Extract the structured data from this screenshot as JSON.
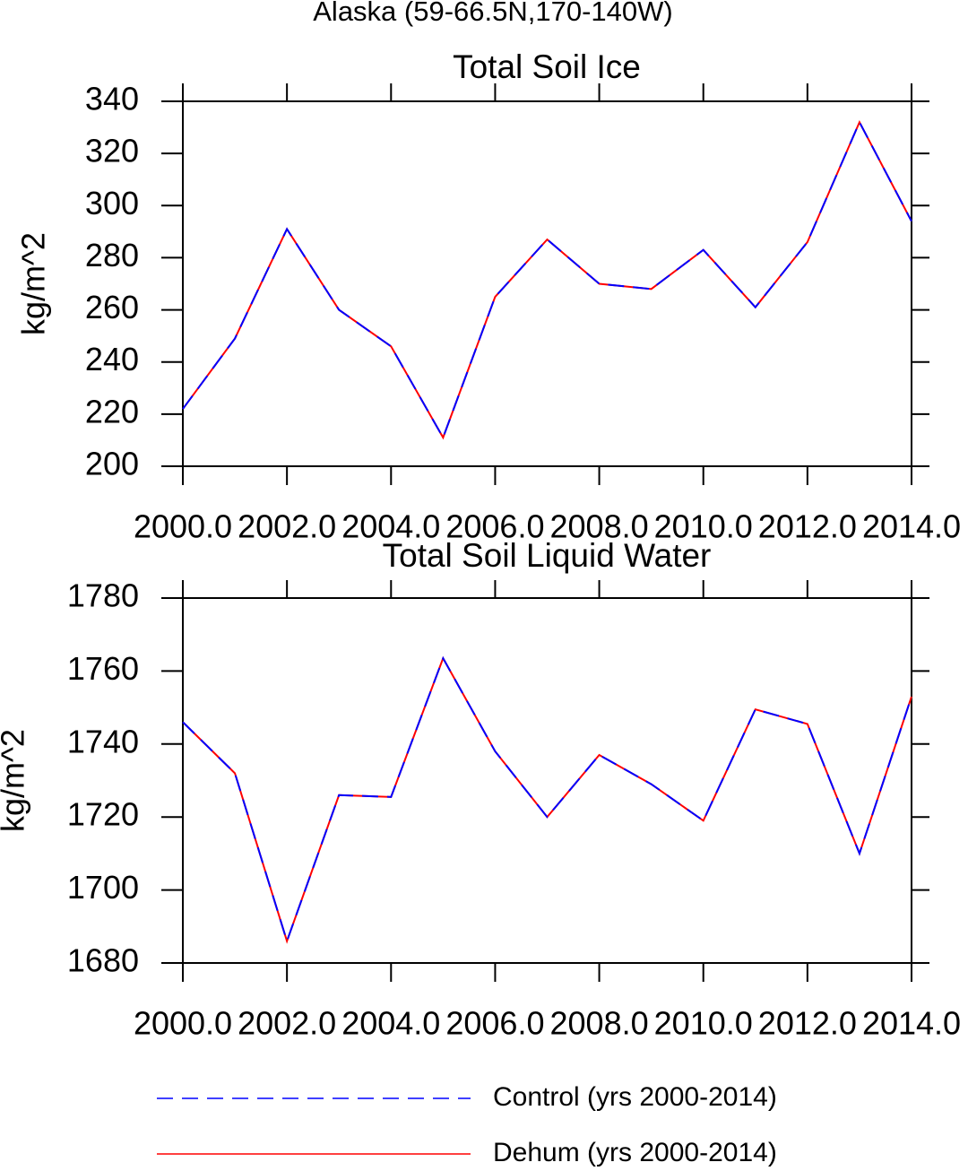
{
  "title": "Alaska (59-66.5N,170-140W)",
  "chart_data": [
    {
      "type": "line",
      "title": "Total Soil Ice",
      "y_label": "kg/m^2",
      "x": [
        2000,
        2001,
        2002,
        2003,
        2004,
        2005,
        2006,
        2007,
        2008,
        2009,
        2010,
        2011,
        2012,
        2013,
        2014
      ],
      "series": [
        {
          "color": "#ff0000",
          "dashed": false,
          "values": [
            222,
            249,
            291,
            260,
            246,
            211,
            265,
            287,
            270,
            268,
            283,
            261,
            286,
            332,
            294
          ]
        },
        {
          "color": "#0000ff",
          "dashed": true,
          "values": [
            222,
            249,
            291,
            260,
            246,
            211,
            265,
            287,
            270,
            268,
            283,
            261,
            286,
            332,
            294
          ]
        }
      ],
      "xlim": [
        2000,
        2014
      ],
      "xticks": [
        {
          "value": 2000,
          "label": "2000.0"
        },
        {
          "value": 2002,
          "label": "2002.0"
        },
        {
          "value": 2004,
          "label": "2004.0"
        },
        {
          "value": 2006,
          "label": "2006.0"
        },
        {
          "value": 2008,
          "label": "2008.0"
        },
        {
          "value": 2010,
          "label": "2010.0"
        },
        {
          "value": 2012,
          "label": "2012.0"
        },
        {
          "value": 2014,
          "label": "2014.0"
        }
      ],
      "ylim": [
        200,
        340
      ],
      "yticks": [
        200,
        220,
        240,
        260,
        280,
        300,
        320,
        340
      ]
    },
    {
      "type": "line",
      "title": "Total Soil Liquid Water",
      "y_label": "kg/m^2",
      "x": [
        2000,
        2001,
        2002,
        2003,
        2004,
        2005,
        2006,
        2007,
        2008,
        2009,
        2010,
        2011,
        2012,
        2013,
        2014
      ],
      "series": [
        {
          "name": "Dehum (yrs 2000-2014)",
          "color": "#ff0000",
          "dashed": false,
          "values": [
            1746,
            1732,
            1686,
            1726,
            1725.5,
            1763.5,
            1738,
            1720,
            1737,
            1729,
            1719,
            1749.5,
            1745.5,
            1710,
            1753
          ]
        },
        {
          "name": "Control (yrs 2000-2014)",
          "color": "#0000ff",
          "dashed": true,
          "values": [
            1746,
            1732,
            1686,
            1726,
            1725.5,
            1763.5,
            1738,
            1720,
            1737,
            1729,
            1719,
            1749.5,
            1745.5,
            1710,
            1753
          ]
        }
      ],
      "xlim": [
        2000,
        2014
      ],
      "xticks": [
        {
          "value": 2000,
          "label": "2000.0"
        },
        {
          "value": 2002,
          "label": "2002.0"
        },
        {
          "value": 2004,
          "label": "2004.0"
        },
        {
          "value": 2006,
          "label": "2006.0"
        },
        {
          "value": 2008,
          "label": "2008.0"
        },
        {
          "value": 2010,
          "label": "2010.0"
        },
        {
          "value": 2012,
          "label": "2012.0"
        },
        {
          "value": 2014,
          "label": "2014.0"
        }
      ],
      "ylim": [
        1680,
        1780
      ],
      "yticks": [
        1680,
        1700,
        1720,
        1740,
        1760,
        1780
      ]
    }
  ]
}
